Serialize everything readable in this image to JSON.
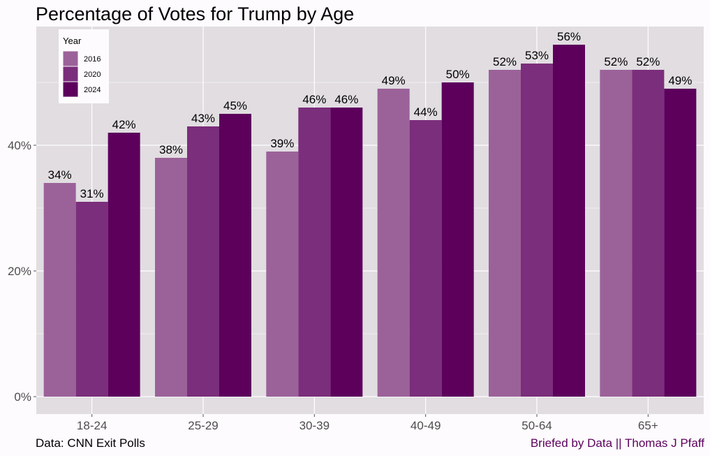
{
  "title": "Percentage of Votes for Trump by Age",
  "caption_left": "Data: CNN Exit Polls",
  "caption_right": "Briefed by Data || Thomas J Pfaff",
  "colors": {
    "panel": "#e1dde1",
    "grid": "#ffffff",
    "series": [
      "#9b6299",
      "#7b2e7b",
      "#5c005c"
    ]
  },
  "chart_data": {
    "type": "bar",
    "title": "Percentage of Votes for Trump by Age",
    "xlabel": "",
    "ylabel": "",
    "categories": [
      "18-24",
      "25-29",
      "30-39",
      "40-49",
      "50-64",
      "65+"
    ],
    "series": [
      {
        "name": "2016",
        "values": [
          34,
          38,
          39,
          49,
          52,
          52
        ]
      },
      {
        "name": "2020",
        "values": [
          31,
          43,
          46,
          44,
          53,
          52
        ]
      },
      {
        "name": "2024",
        "values": [
          42,
          45,
          46,
          50,
          56,
          49
        ]
      }
    ],
    "ylim": [
      0,
      60
    ],
    "yticks": [
      0,
      20,
      40
    ],
    "ytick_labels": [
      "0%",
      "20%",
      "40%"
    ],
    "value_label_suffix": "%",
    "legend": {
      "title": "Year",
      "position": "top-left",
      "entries": [
        "2016",
        "2020",
        "2024"
      ]
    },
    "grid": true
  }
}
